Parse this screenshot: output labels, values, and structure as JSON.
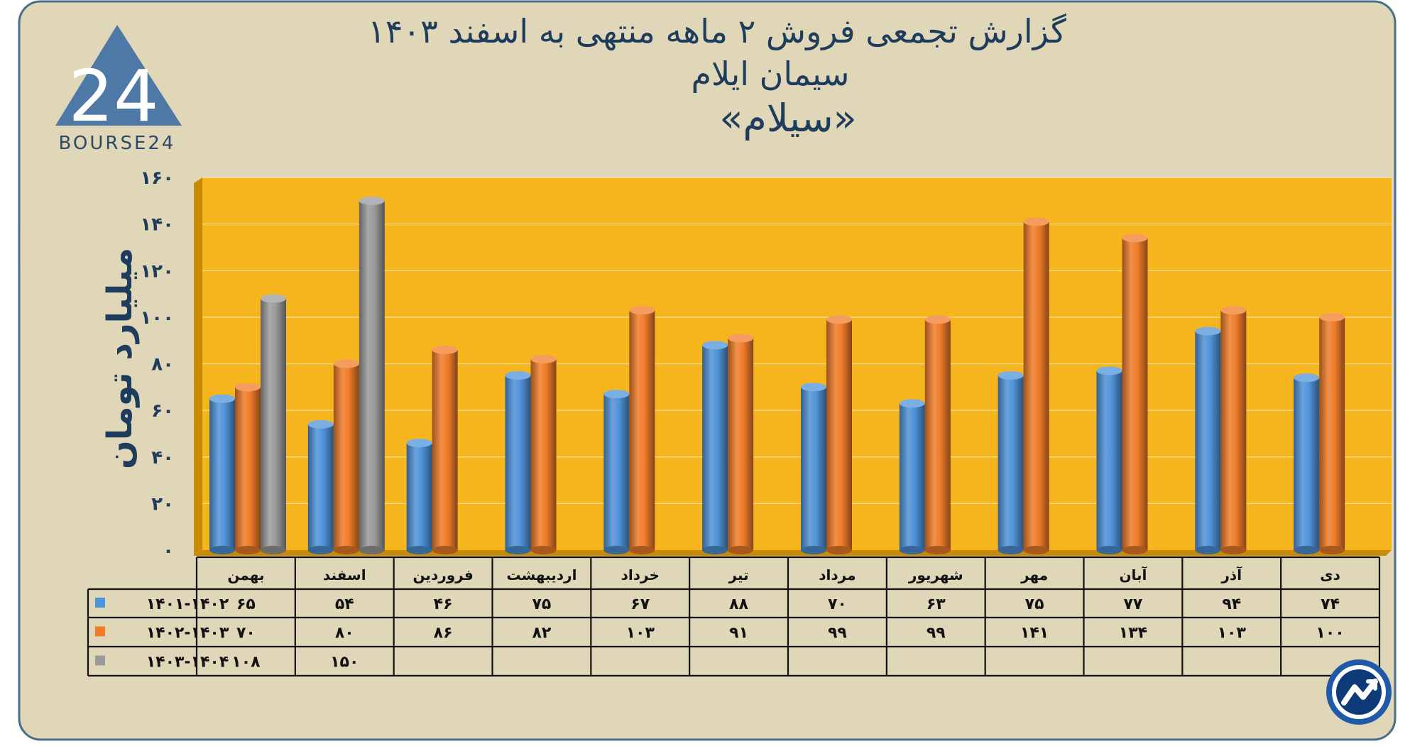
{
  "header": {
    "title_line1": "گزارش تجمعی فروش ۲ ماهه منتهی به اسفند ۱۴۰۳",
    "title_line2": "سیمان ایلام",
    "title_line3": "«سیلام»"
  },
  "logo": {
    "brand_text": "BOURSE24",
    "mark_text": "24"
  },
  "colors": {
    "panel": "#e0d6b8",
    "panel_border": "#4a6f8a",
    "plot_bg": "#f7b51d",
    "plot_wall": "#c98a06",
    "title": "#1e3c5c",
    "logo": "#4e78a6",
    "series": [
      "#4f93d8",
      "#f07c2a",
      "#9a9a9a"
    ]
  },
  "chart_data": {
    "type": "bar",
    "title": "گزارش تجمعی فروش ۲ ماهه منتهی به اسفند ۱۴۰۳",
    "subtitle": "سیمان ایلام «سیلام»",
    "ylabel": "میلیارد تومان",
    "xlabel": "",
    "ylim": [
      0,
      160
    ],
    "yticks": [
      0,
      20,
      40,
      60,
      80,
      100,
      120,
      140,
      160
    ],
    "ytick_labels": [
      "۰",
      "۲۰",
      "۴۰",
      "۶۰",
      "۸۰",
      "۱۰۰",
      "۱۲۰",
      "۱۴۰",
      "۱۶۰"
    ],
    "grid": true,
    "legend_position": "table-left",
    "categories": [
      "بهمن",
      "اسفند",
      "فروردین",
      "اردیبهشت",
      "خرداد",
      "تیر",
      "مرداد",
      "شهریور",
      "مهر",
      "آبان",
      "آذر",
      "دی"
    ],
    "series": [
      {
        "name": "۱۴۰۱-۱۴۰۲",
        "color": "#4f93d8",
        "values": [
          65,
          54,
          46,
          75,
          67,
          88,
          70,
          63,
          75,
          77,
          94,
          74
        ],
        "labels": [
          "۶۵",
          "۵۴",
          "۴۶",
          "۷۵",
          "۶۷",
          "۸۸",
          "۷۰",
          "۶۳",
          "۷۵",
          "۷۷",
          "۹۴",
          "۷۴"
        ]
      },
      {
        "name": "۱۴۰۲-۱۴۰۳",
        "color": "#f07c2a",
        "values": [
          70,
          80,
          86,
          82,
          103,
          91,
          99,
          99,
          141,
          134,
          103,
          100
        ],
        "labels": [
          "۷۰",
          "۸۰",
          "۸۶",
          "۸۲",
          "۱۰۳",
          "۹۱",
          "۹۹",
          "۹۹",
          "۱۴۱",
          "۱۳۴",
          "۱۰۳",
          "۱۰۰"
        ]
      },
      {
        "name": "۱۴۰۳-۱۴۰۴",
        "color": "#9a9a9a",
        "values": [
          108,
          150,
          null,
          null,
          null,
          null,
          null,
          null,
          null,
          null,
          null,
          null
        ],
        "labels": [
          "۱۰۸",
          "۱۵۰",
          "",
          "",
          "",
          "",
          "",
          "",
          "",
          "",
          "",
          ""
        ]
      }
    ]
  }
}
